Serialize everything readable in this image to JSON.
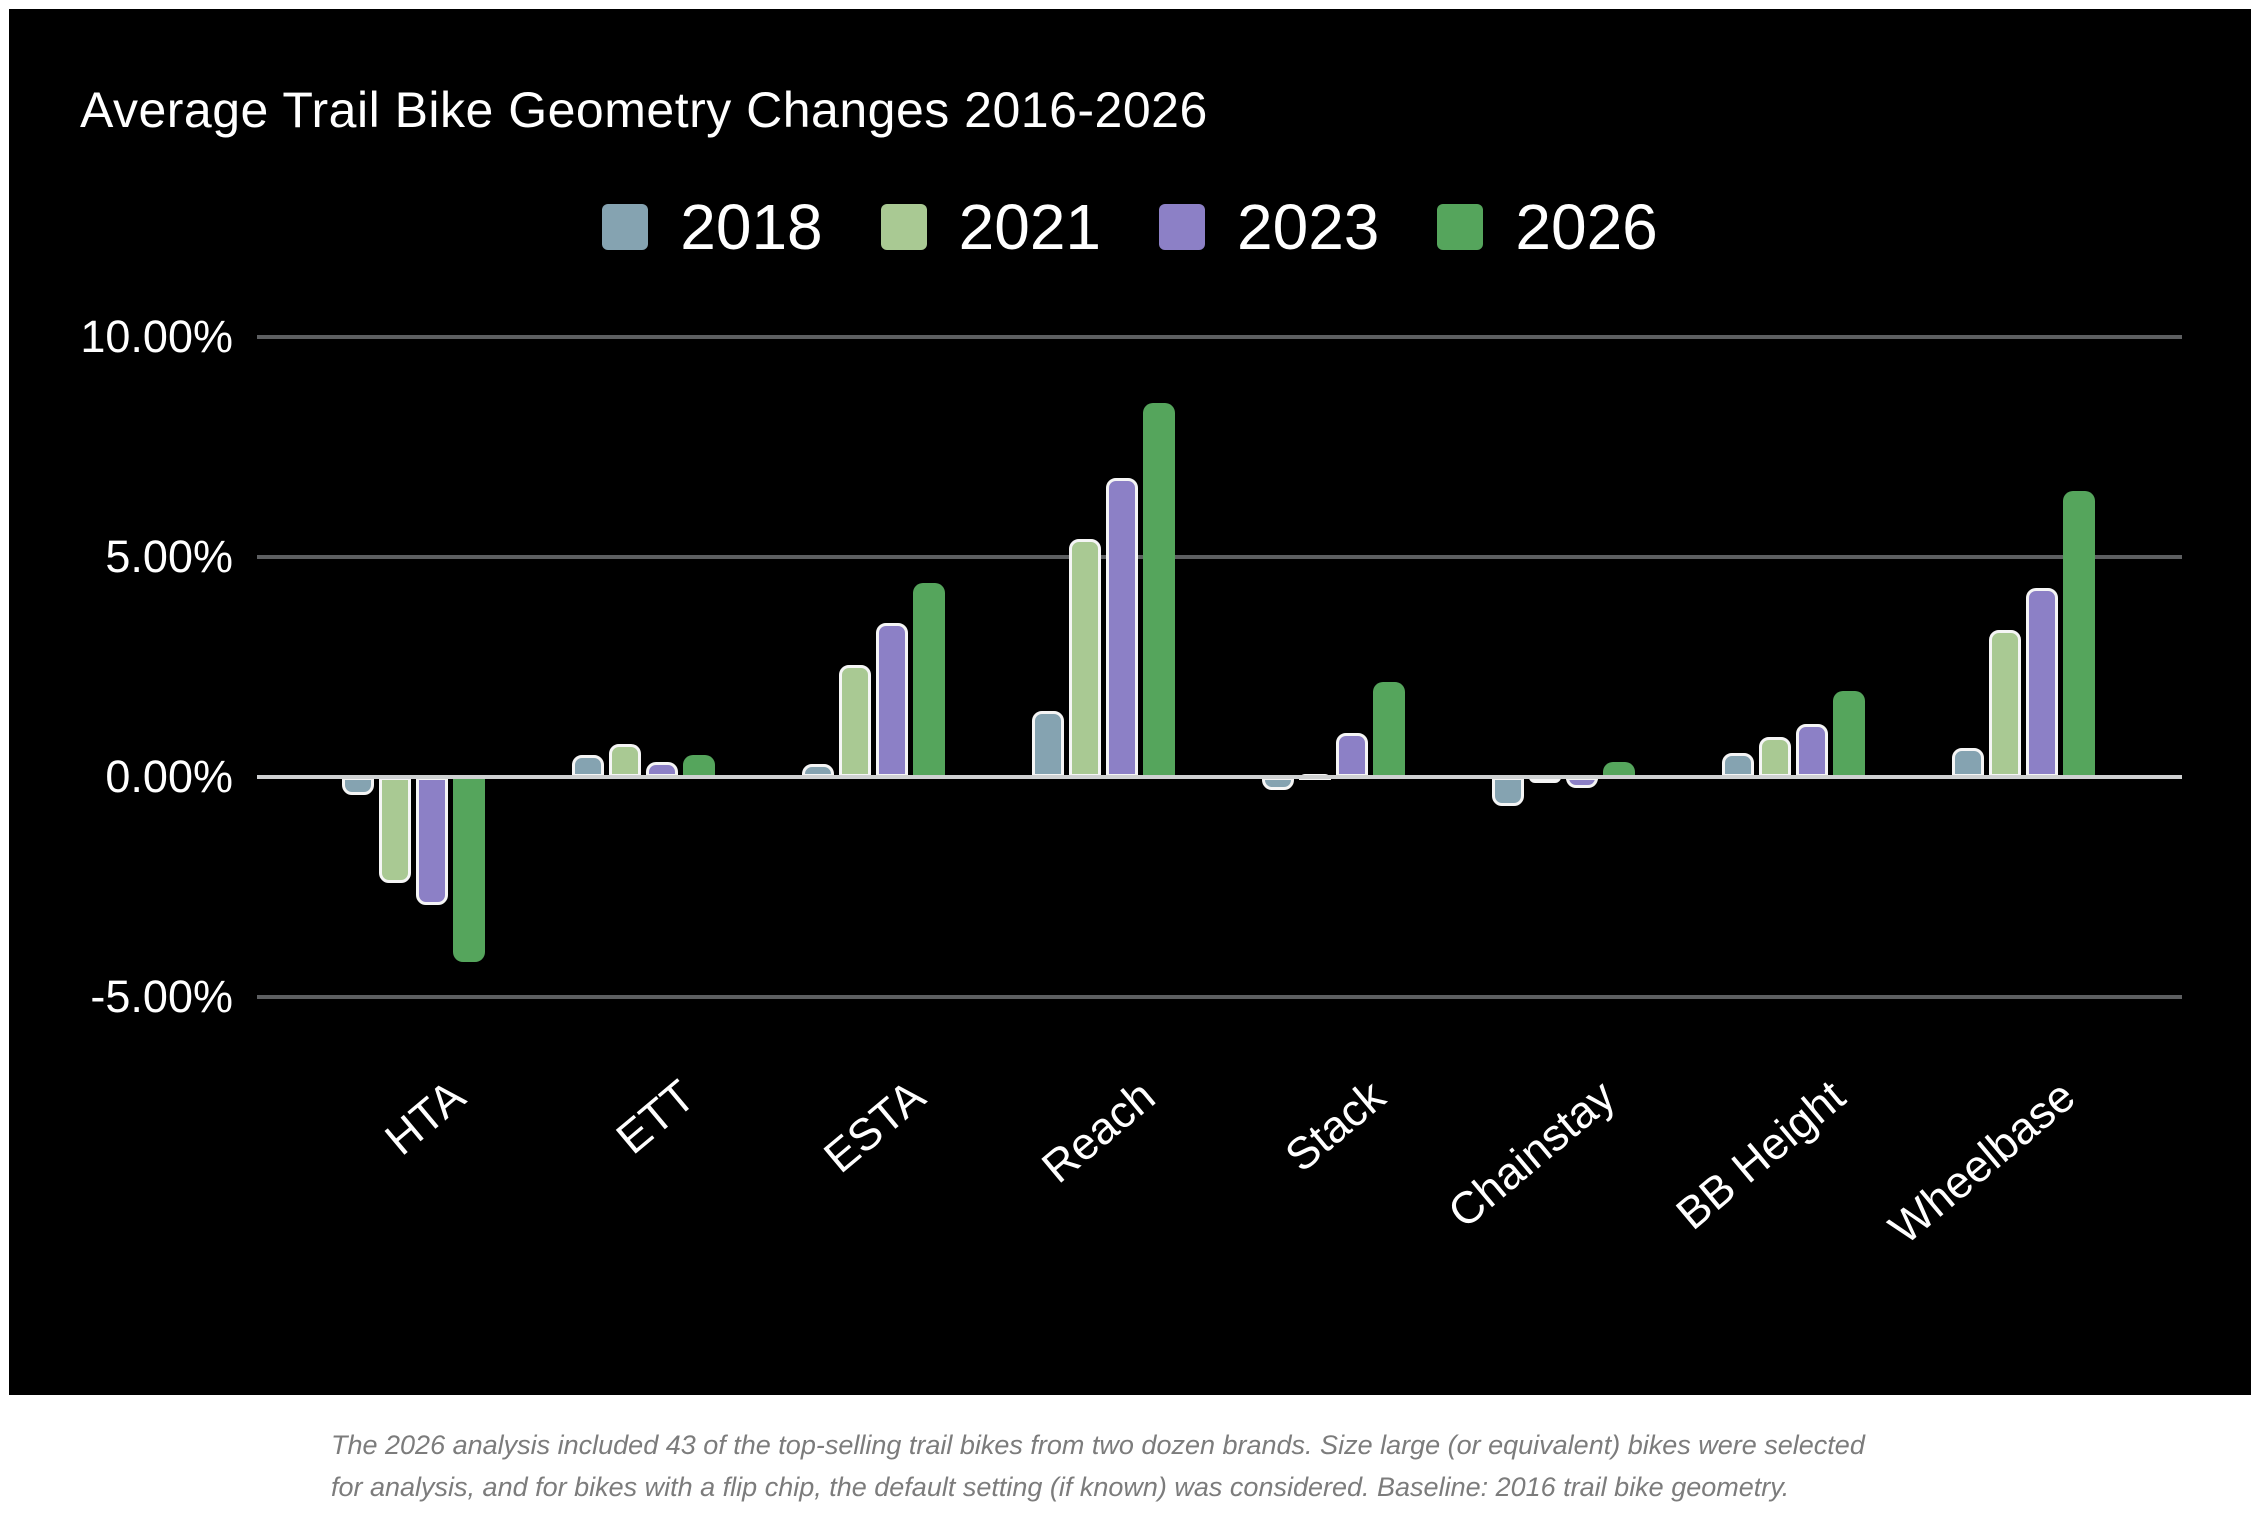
{
  "page": {
    "background": "#ffffff",
    "panel_background": "#000000"
  },
  "chart": {
    "title": "Average Trail Bike Geometry Changes 2016-2026"
  },
  "caption": {
    "line1": "The 2026 analysis included 43 of the top-selling trail bikes from two dozen brands. Size large (or equivalent) bikes were selected",
    "line2": "for analysis, and for bikes with a flip chip, the default setting (if known) was considered. Baseline: 2016 trail bike geometry."
  },
  "chart_data": {
    "type": "bar",
    "title": "Average Trail Bike Geometry Changes 2016-2026",
    "categories": [
      "HTA",
      "ETT",
      "ESTA",
      "Reach",
      "Stack",
      "Chainstay",
      "BB Height",
      "Wheelbase"
    ],
    "series": [
      {
        "name": "2018",
        "color": "#85A3B1",
        "values": [
          -0.4,
          0.5,
          0.3,
          1.5,
          -0.3,
          -0.65,
          0.55,
          0.65
        ]
      },
      {
        "name": "2021",
        "color": "#A9C993",
        "values": [
          -2.4,
          0.75,
          2.55,
          5.4,
          0.05,
          -0.05,
          0.9,
          3.35
        ]
      },
      {
        "name": "2023",
        "color": "#8C80C6",
        "values": [
          -2.9,
          0.35,
          3.5,
          6.8,
          1.0,
          -0.25,
          1.2,
          4.3
        ]
      },
      {
        "name": "2026",
        "color": "#55A55C",
        "values": [
          -4.2,
          0.5,
          4.4,
          8.5,
          2.15,
          0.35,
          1.95,
          6.5
        ]
      }
    ],
    "y_ticks": [
      {
        "label": "10.00%",
        "value": 10
      },
      {
        "label": "5.00%",
        "value": 5
      },
      {
        "label": "0.00%",
        "value": 0
      },
      {
        "label": "-5.00%",
        "value": -5
      }
    ],
    "ylabel": "",
    "xlabel": "",
    "ylim": [
      -5,
      10
    ],
    "value_unit": "percent",
    "grid": true,
    "legend_position": "top",
    "plot_background": "#000000",
    "gridline_color": "#5d5f61",
    "zero_line_color": "#cfd1d2",
    "text_color": "#ffffff"
  }
}
